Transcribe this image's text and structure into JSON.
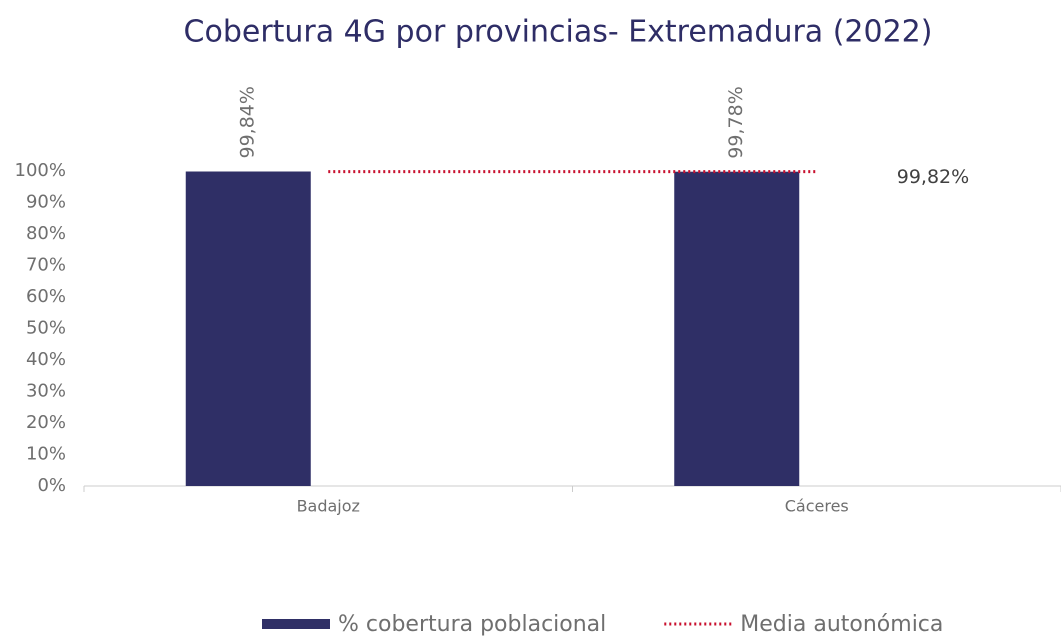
{
  "chart_data": {
    "type": "bar",
    "title": "Cobertura 4G por provincias- Extremadura (2022)",
    "categories": [
      "Badajoz",
      "Cáceres"
    ],
    "series": [
      {
        "name": "% cobertura poblacional",
        "type": "bar",
        "color": "#2f2f66",
        "values": [
          99.84,
          99.78
        ],
        "value_labels": [
          "99,84%",
          "99,78%"
        ]
      },
      {
        "name": "Media autonómica",
        "type": "line",
        "color": "#c8102e",
        "values": [
          99.82,
          99.82
        ],
        "value_labels": [
          null,
          "99,82%"
        ]
      }
    ],
    "ylim": [
      0,
      100
    ],
    "yticks": [
      {
        "value": 0,
        "label": "0%"
      },
      {
        "value": 10,
        "label": "10%"
      },
      {
        "value": 20,
        "label": "20%"
      },
      {
        "value": 30,
        "label": "30%"
      },
      {
        "value": 40,
        "label": "40%"
      },
      {
        "value": 50,
        "label": "50%"
      },
      {
        "value": 60,
        "label": "60%"
      },
      {
        "value": 70,
        "label": "70%"
      },
      {
        "value": 80,
        "label": "80%"
      },
      {
        "value": 90,
        "label": "90%"
      },
      {
        "value": 100,
        "label": "100%"
      }
    ],
    "grid": false,
    "legend": "bottom"
  }
}
